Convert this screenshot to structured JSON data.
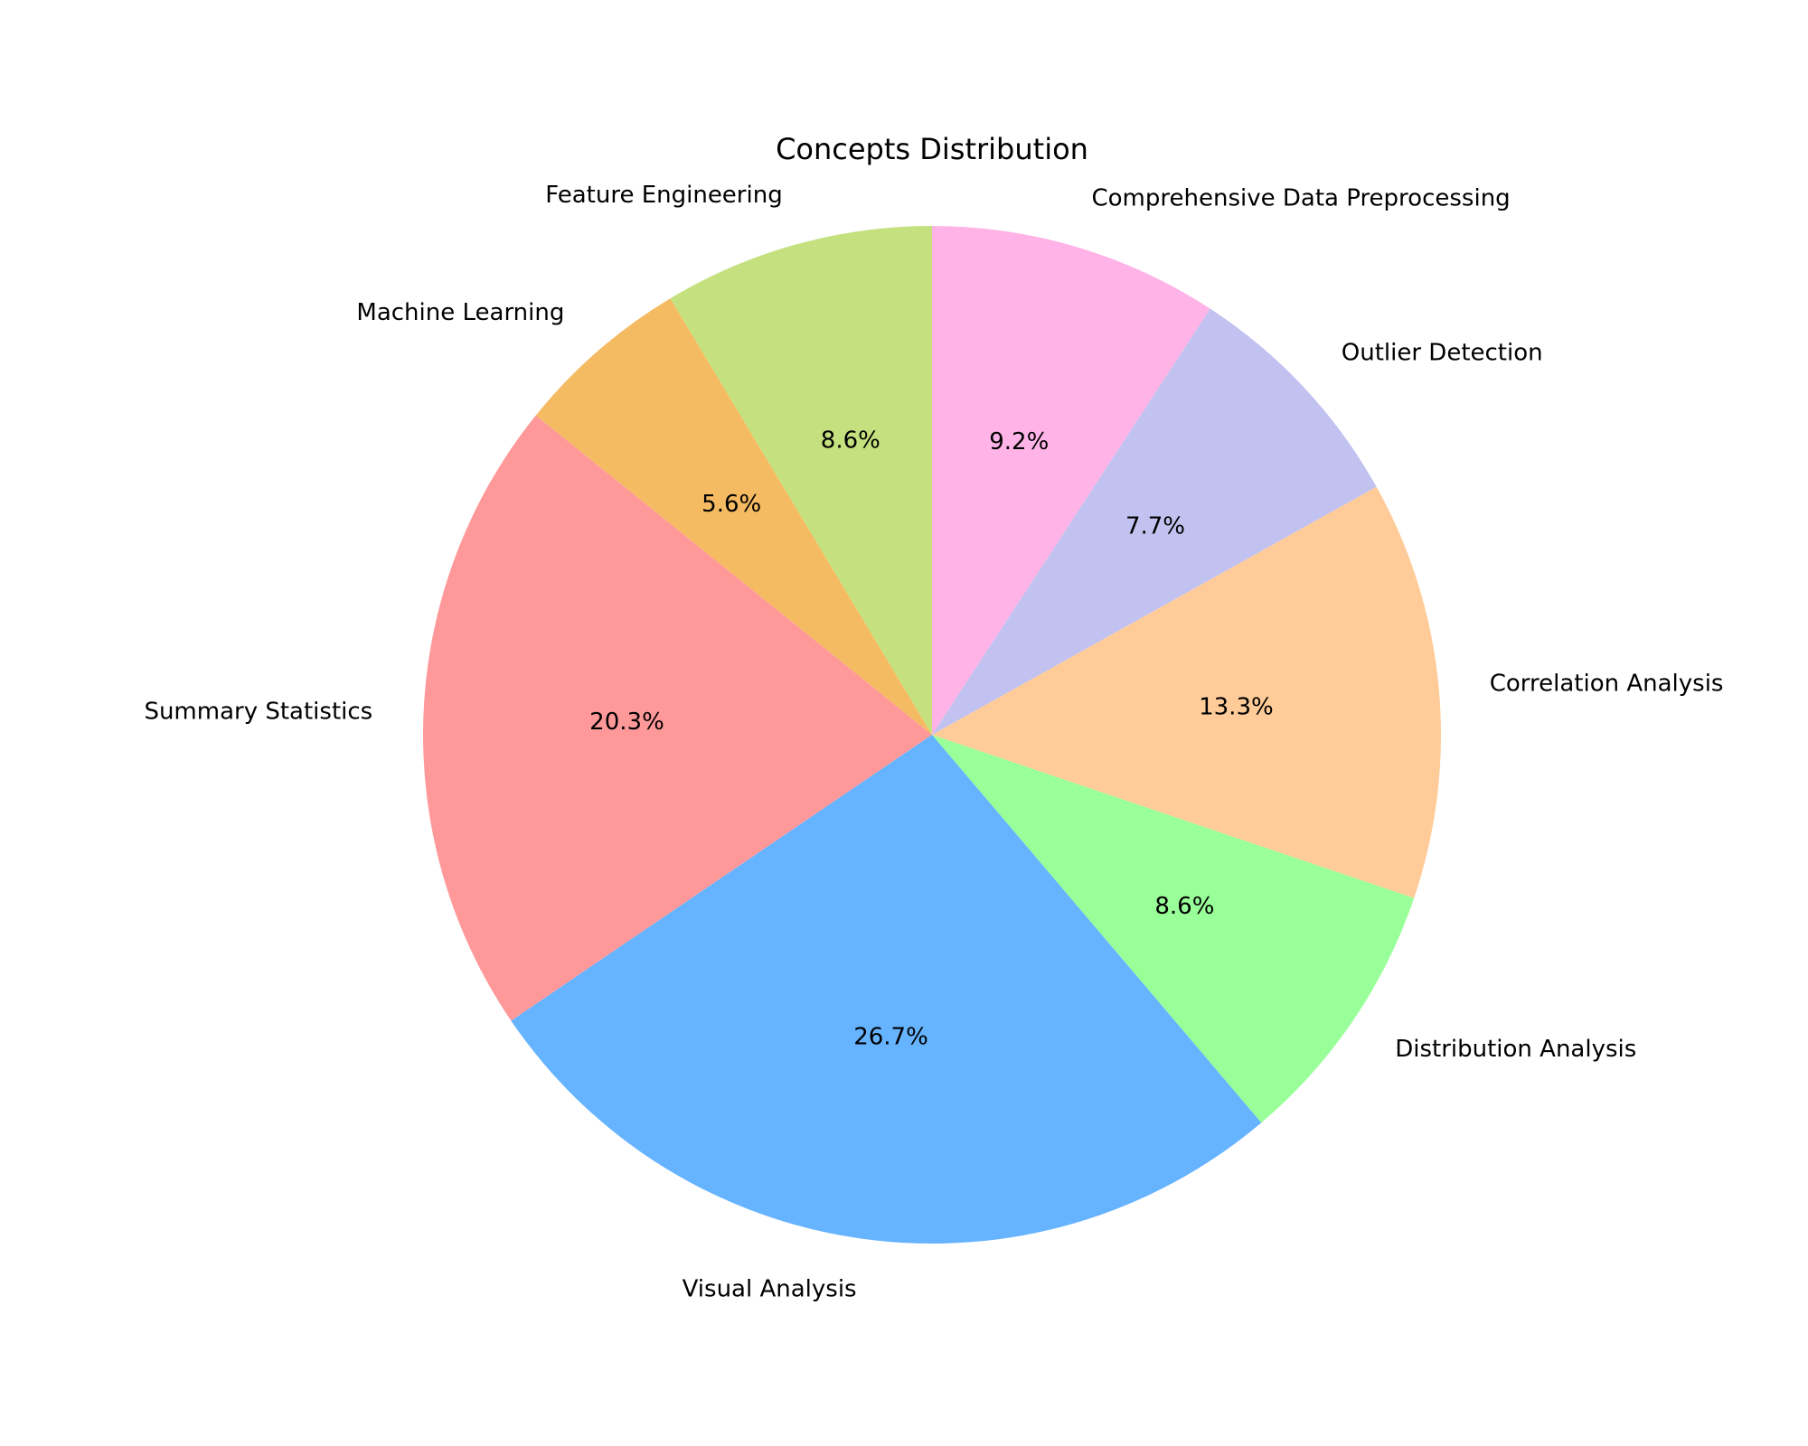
{
  "chart_data": {
    "type": "pie",
    "title": "Concepts Distribution",
    "start_angle_deg": 90,
    "direction": "counterclockwise",
    "slices": [
      {
        "label": "Feature Engineering",
        "value": 8.6,
        "pct_text": "8.6%",
        "color": "#c5e17f"
      },
      {
        "label": "Machine Learning",
        "value": 5.6,
        "pct_text": "5.6%",
        "color": "#f5bb62"
      },
      {
        "label": "Summary Statistics",
        "value": 20.3,
        "pct_text": "20.3%",
        "color": "#ff9999"
      },
      {
        "label": "Visual Analysis",
        "value": 26.7,
        "pct_text": "26.7%",
        "color": "#66b3ff"
      },
      {
        "label": "Distribution Analysis",
        "value": 8.6,
        "pct_text": "8.6%",
        "color": "#99ff99"
      },
      {
        "label": "Correlation Analysis",
        "value": 13.3,
        "pct_text": "13.3%",
        "color": "#ffcc99"
      },
      {
        "label": "Outlier Detection",
        "value": 7.7,
        "pct_text": "7.7%",
        "color": "#c2c2f0"
      },
      {
        "label": "Comprehensive Data Preprocessing",
        "value": 9.2,
        "pct_text": "9.2%",
        "color": "#ffb3e6"
      }
    ]
  }
}
